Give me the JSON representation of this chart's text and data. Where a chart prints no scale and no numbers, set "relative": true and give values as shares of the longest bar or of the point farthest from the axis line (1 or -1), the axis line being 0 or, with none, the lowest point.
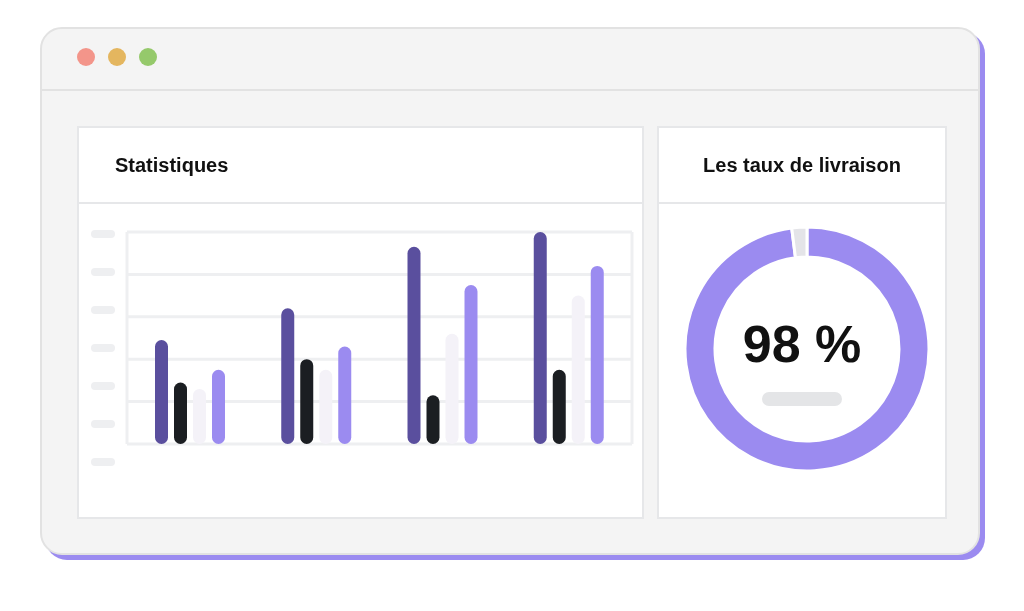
{
  "chart_data": [
    {
      "type": "bar",
      "title": "Statistiques",
      "relative": true,
      "grid": true,
      "legend": false,
      "categories": [
        null,
        null,
        null,
        null
      ],
      "series": [
        {
          "color": "#5a4f9e",
          "values": [
            0.49,
            0.64,
            0.93,
            1
          ]
        },
        {
          "color": "#1b1e22",
          "values": [
            0.29,
            0.4,
            0.23,
            0.35
          ]
        },
        {
          "color": "#f4f2f8",
          "values": [
            0.26,
            0.35,
            0.52,
            0.7
          ]
        },
        {
          "color": "#9b8bf0",
          "values": [
            0.35,
            0.46,
            0.75,
            0.84
          ]
        }
      ]
    },
    {
      "type": "donut",
      "title": "Les taux de livraison",
      "legend": false,
      "categories": [
        null,
        null
      ],
      "values": [
        98,
        2
      ],
      "colors": [
        "#9b8bf0",
        "#e4e4e8"
      ],
      "value_labels": [
        "98 %",
        null
      ]
    }
  ]
}
